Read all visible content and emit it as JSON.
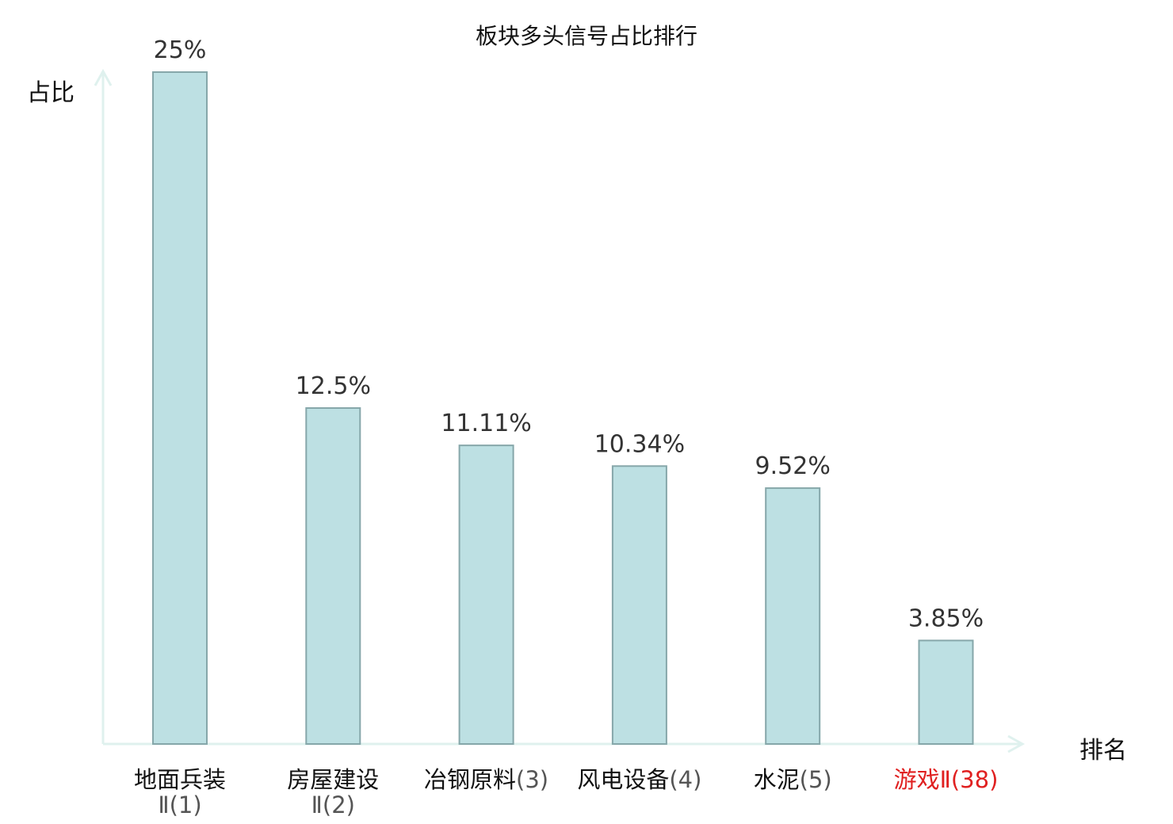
{
  "chart_data": {
    "type": "bar",
    "title": "板块多头信号占比排行",
    "xlabel": "排名",
    "ylabel": "占比",
    "categories": [
      {
        "name": "地面兵装",
        "suffix": "Ⅱ(1)",
        "highlight": false
      },
      {
        "name": "房屋建设",
        "suffix": "Ⅱ(2)",
        "highlight": false
      },
      {
        "name": "冶钢原料",
        "suffix": "(3)",
        "highlight": false
      },
      {
        "name": "风电设备",
        "suffix": "(4)",
        "highlight": false
      },
      {
        "name": "水泥",
        "suffix": "(5)",
        "highlight": false
      },
      {
        "name": "游戏",
        "suffix": "Ⅱ(38)",
        "highlight": true
      }
    ],
    "values": [
      25,
      12.5,
      11.11,
      10.34,
      9.52,
      3.85
    ],
    "value_labels": [
      "25%",
      "12.5%",
      "11.11%",
      "10.34%",
      "9.52%",
      "3.85%"
    ],
    "ylim": [
      0,
      25
    ],
    "grid": false,
    "legend": "none",
    "colors": {
      "bar_fill": "#bde0e3",
      "bar_stroke": "#86a7aa",
      "axis": "#dff1ee",
      "label": "#111111",
      "suffix": "#555555",
      "value_label": "#333333",
      "highlight": "#e02020"
    }
  }
}
